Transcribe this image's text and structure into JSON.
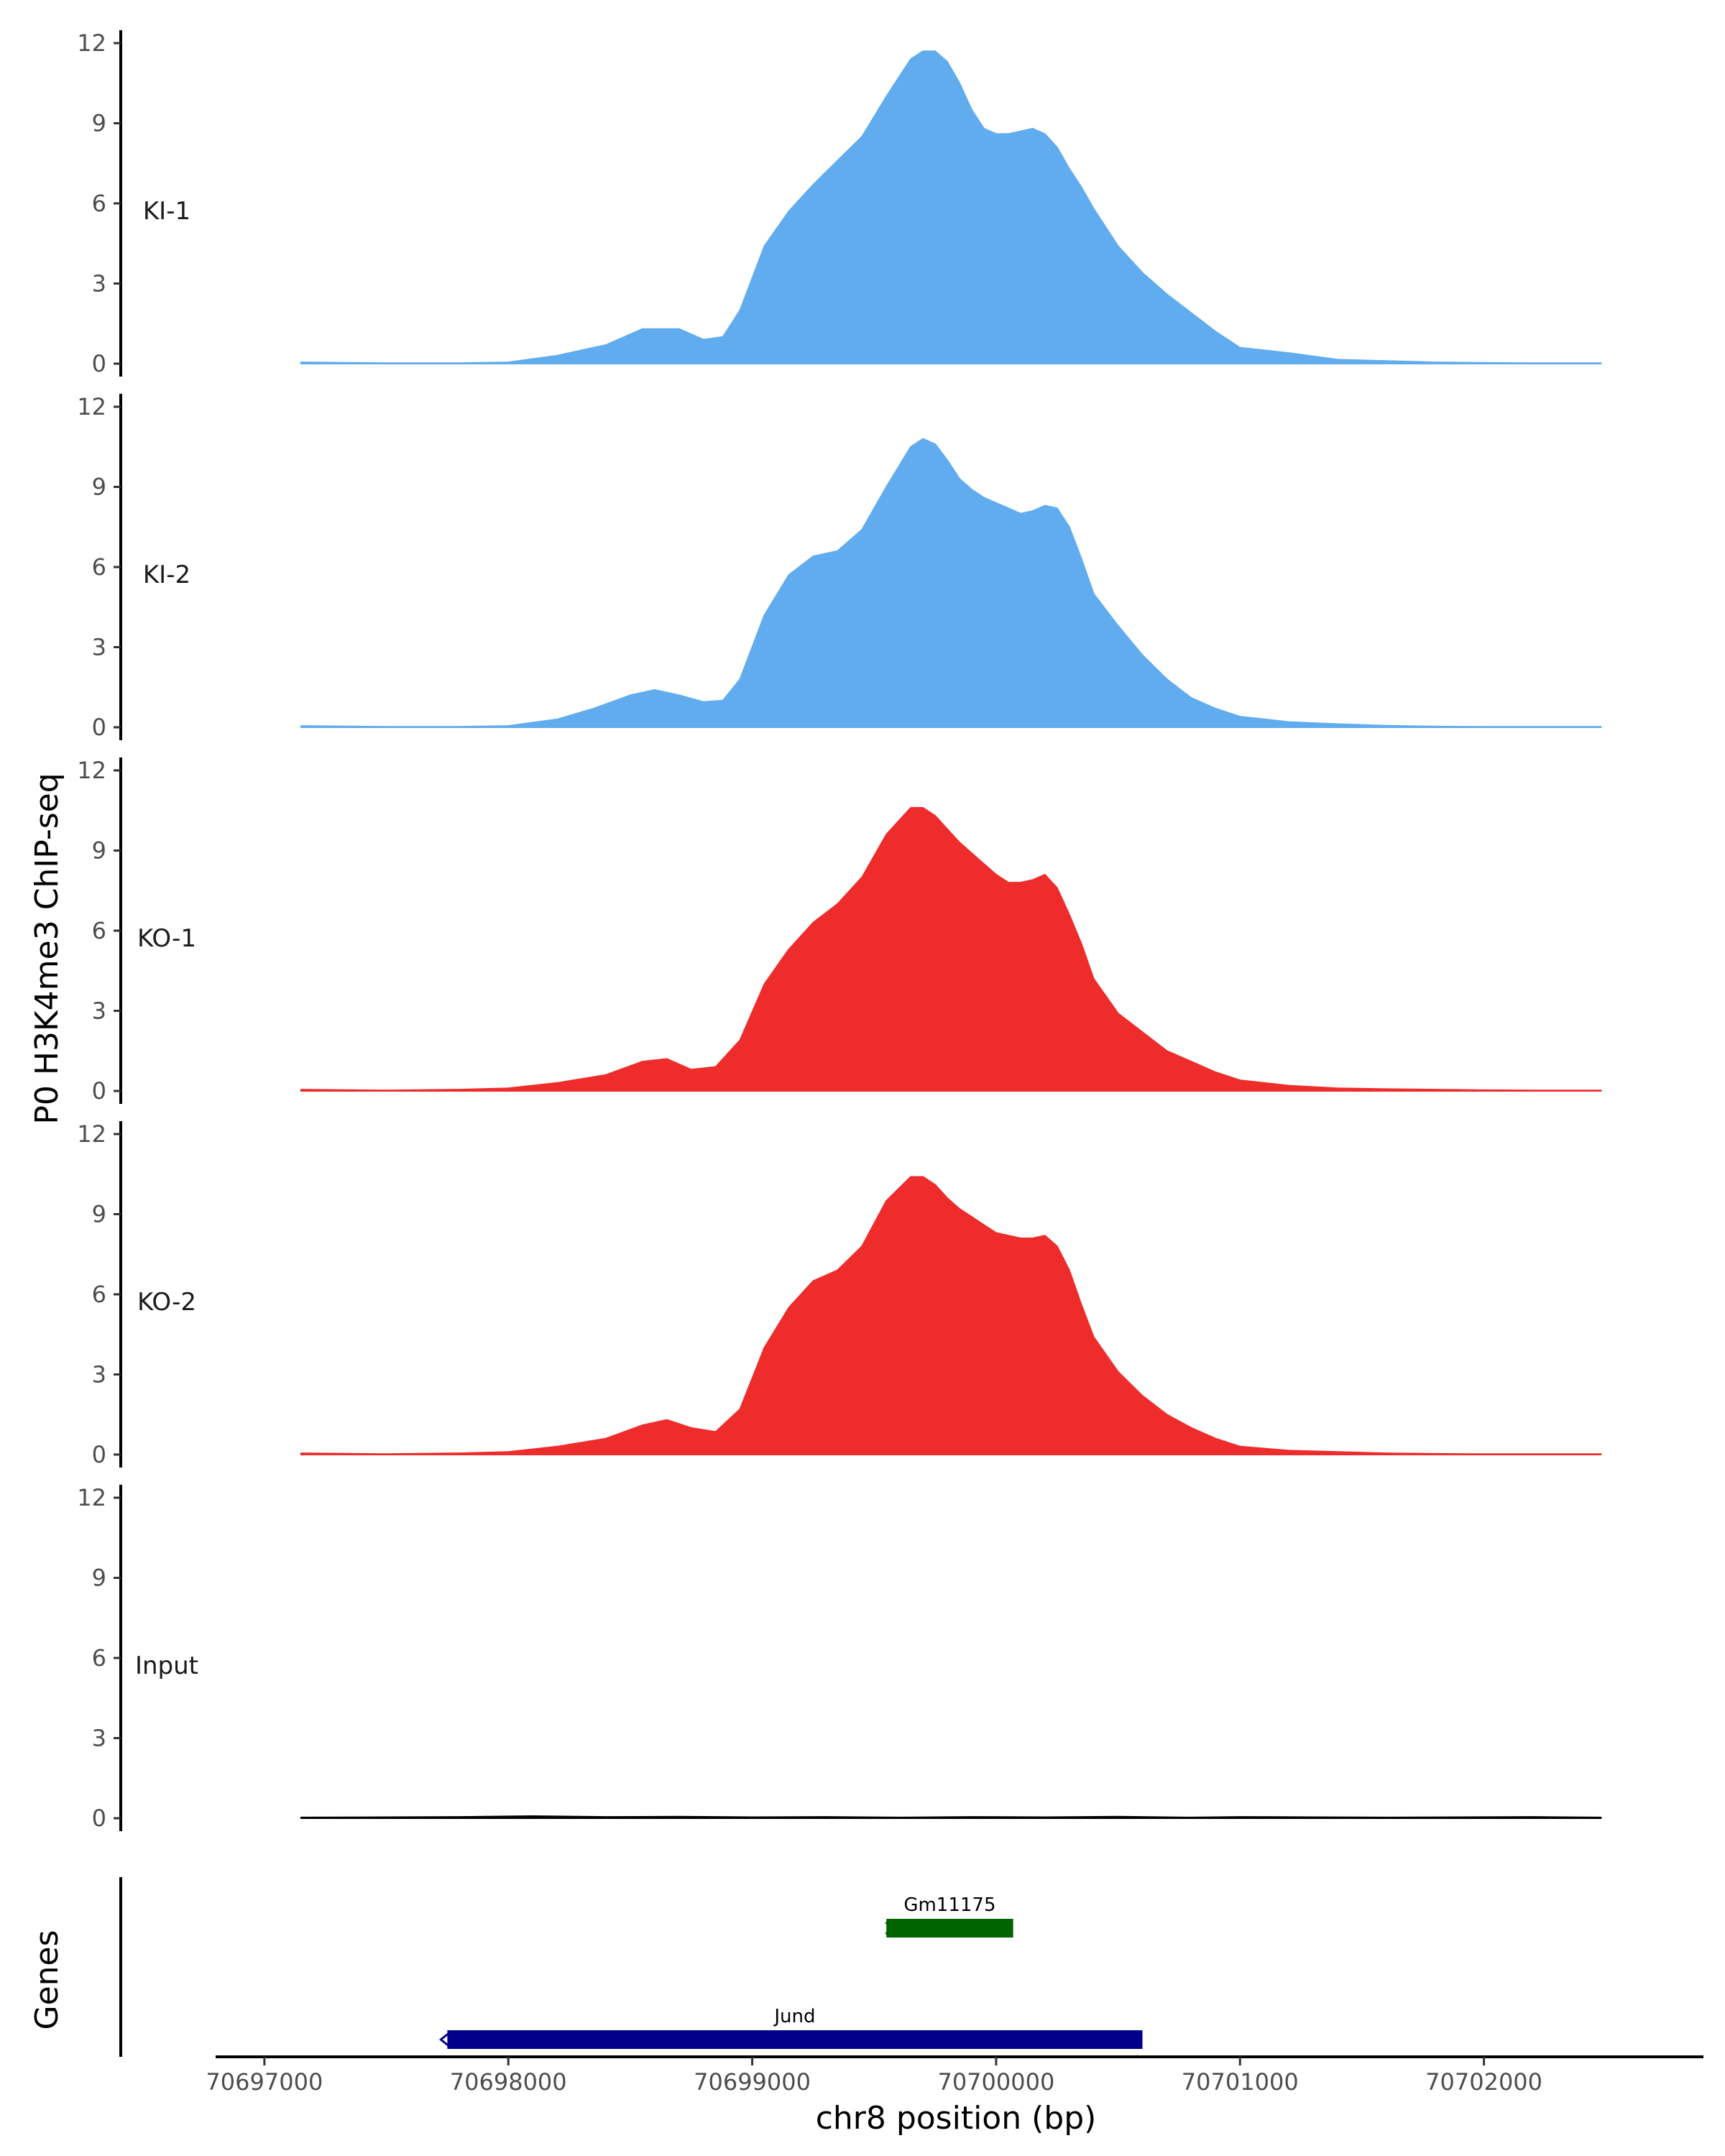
{
  "chart_data": {
    "type": "area",
    "y_axis_title": "P0 H3K4me3 ChIP-seq",
    "x_axis_title": "chr8 position (bp)",
    "genes_axis_title": "Genes",
    "chromosome": "chr8",
    "xlim": [
      70696800,
      70702900
    ],
    "x_ticks": [
      70697000,
      70698000,
      70699000,
      70700000,
      70701000,
      70702000
    ],
    "x_tick_labels": [
      "70697000",
      "70698000",
      "70699000",
      "70700000",
      "70701000",
      "70702000"
    ],
    "ylim": [
      0,
      12
    ],
    "y_ticks": [
      0,
      3,
      6,
      9,
      12
    ],
    "y_tick_labels": [
      "0",
      "3",
      "6",
      "9",
      "12"
    ],
    "colors": {
      "KI": "#60acee",
      "KO": "#ee2c2c",
      "Input": "#000000",
      "gene_green": "#006400",
      "gene_blue": "#00008b",
      "axis": "#000000",
      "tick_text": "#4d4d4d"
    },
    "series": [
      {
        "name": "KI-1",
        "color": "#60acee",
        "x": [
          70697150,
          70697500,
          70697800,
          70698000,
          70698200,
          70698400,
          70698550,
          70698700,
          70698800,
          70698880,
          70698950,
          70699050,
          70699150,
          70699250,
          70699350,
          70699450,
          70699550,
          70699650,
          70699700,
          70699750,
          70699800,
          70699850,
          70699900,
          70699950,
          70700000,
          70700050,
          70700100,
          70700150,
          70700200,
          70700250,
          70700300,
          70700350,
          70700400,
          70700500,
          70700600,
          70700700,
          70700800,
          70700900,
          70701000,
          70701200,
          70701400,
          70701600,
          70701800,
          70702000,
          70702200,
          70702480
        ],
        "values": [
          0.05,
          0.02,
          0.02,
          0.05,
          0.3,
          0.7,
          1.3,
          1.3,
          0.9,
          1.0,
          2.0,
          4.4,
          5.7,
          6.7,
          7.6,
          8.5,
          10.0,
          11.4,
          11.7,
          11.7,
          11.3,
          10.5,
          9.5,
          8.8,
          8.6,
          8.6,
          8.7,
          8.8,
          8.6,
          8.1,
          7.3,
          6.6,
          5.8,
          4.4,
          3.4,
          2.6,
          1.9,
          1.2,
          0.6,
          0.4,
          0.15,
          0.1,
          0.05,
          0.03,
          0.02,
          0.02
        ]
      },
      {
        "name": "KI-2",
        "color": "#60acee",
        "x": [
          70697150,
          70697500,
          70697800,
          70698000,
          70698200,
          70698350,
          70698500,
          70698600,
          70698700,
          70698800,
          70698880,
          70698950,
          70699050,
          70699150,
          70699250,
          70699350,
          70699450,
          70699550,
          70699650,
          70699700,
          70699750,
          70699800,
          70699850,
          70699900,
          70699950,
          70700000,
          70700050,
          70700100,
          70700150,
          70700200,
          70700250,
          70700300,
          70700350,
          70700400,
          70700500,
          70700600,
          70700700,
          70700800,
          70700900,
          70701000,
          70701200,
          70701400,
          70701600,
          70701800,
          70702000,
          70702200,
          70702480
        ],
        "values": [
          0.05,
          0.02,
          0.02,
          0.05,
          0.3,
          0.7,
          1.2,
          1.4,
          1.2,
          0.95,
          1.0,
          1.8,
          4.2,
          5.7,
          6.4,
          6.6,
          7.4,
          9.0,
          10.5,
          10.8,
          10.6,
          10.0,
          9.3,
          8.9,
          8.6,
          8.4,
          8.2,
          8.0,
          8.1,
          8.3,
          8.2,
          7.5,
          6.3,
          5.0,
          3.8,
          2.7,
          1.8,
          1.1,
          0.7,
          0.4,
          0.2,
          0.12,
          0.06,
          0.03,
          0.02,
          0.02,
          0.02
        ]
      },
      {
        "name": "KO-1",
        "color": "#ee2c2c",
        "x": [
          70697150,
          70697500,
          70697800,
          70698000,
          70698200,
          70698400,
          70698550,
          70698650,
          70698750,
          70698850,
          70698950,
          70699050,
          70699150,
          70699250,
          70699350,
          70699450,
          70699550,
          70699650,
          70699700,
          70699750,
          70699800,
          70699850,
          70699900,
          70699950,
          70700000,
          70700050,
          70700100,
          70700150,
          70700200,
          70700250,
          70700300,
          70700350,
          70700400,
          70700500,
          70700600,
          70700700,
          70700800,
          70700900,
          70701000,
          70701200,
          70701400,
          70701600,
          70701800,
          70702000,
          70702200,
          70702480
        ],
        "values": [
          0.05,
          0.02,
          0.05,
          0.1,
          0.3,
          0.6,
          1.1,
          1.2,
          0.8,
          0.9,
          1.9,
          4.0,
          5.3,
          6.3,
          7.0,
          8.0,
          9.6,
          10.6,
          10.6,
          10.3,
          9.8,
          9.3,
          8.9,
          8.5,
          8.1,
          7.8,
          7.8,
          7.9,
          8.1,
          7.6,
          6.6,
          5.5,
          4.2,
          2.9,
          2.2,
          1.5,
          1.1,
          0.7,
          0.4,
          0.2,
          0.1,
          0.07,
          0.05,
          0.03,
          0.02,
          0.02
        ]
      },
      {
        "name": "KO-2",
        "color": "#ee2c2c",
        "x": [
          70697150,
          70697500,
          70697800,
          70698000,
          70698200,
          70698400,
          70698550,
          70698650,
          70698750,
          70698850,
          70698950,
          70699050,
          70699150,
          70699250,
          70699350,
          70699450,
          70699550,
          70699650,
          70699700,
          70699750,
          70699800,
          70699850,
          70699900,
          70699950,
          70700000,
          70700050,
          70700100,
          70700150,
          70700200,
          70700250,
          70700300,
          70700350,
          70700400,
          70700500,
          70700600,
          70700700,
          70700800,
          70700900,
          70701000,
          70701200,
          70701400,
          70701600,
          70701800,
          70702000,
          70702200,
          70702480
        ],
        "values": [
          0.05,
          0.02,
          0.05,
          0.1,
          0.3,
          0.6,
          1.1,
          1.3,
          1.0,
          0.85,
          1.7,
          4.0,
          5.5,
          6.5,
          6.9,
          7.8,
          9.5,
          10.4,
          10.4,
          10.1,
          9.6,
          9.2,
          8.9,
          8.6,
          8.3,
          8.2,
          8.1,
          8.1,
          8.2,
          7.8,
          6.9,
          5.6,
          4.4,
          3.1,
          2.2,
          1.5,
          1.0,
          0.6,
          0.3,
          0.15,
          0.1,
          0.05,
          0.03,
          0.02,
          0.02,
          0.02
        ]
      },
      {
        "name": "Input",
        "color": "#000000",
        "x": [
          70697150,
          70697500,
          70697800,
          70698100,
          70698400,
          70698700,
          70699000,
          70699300,
          70699600,
          70699900,
          70700200,
          70700500,
          70700800,
          70701000,
          70701300,
          70701600,
          70701900,
          70702200,
          70702480
        ],
        "values": [
          0.03,
          0.04,
          0.05,
          0.08,
          0.05,
          0.06,
          0.04,
          0.05,
          0.03,
          0.05,
          0.04,
          0.06,
          0.03,
          0.05,
          0.04,
          0.03,
          0.04,
          0.05,
          0.03
        ]
      }
    ],
    "genes": [
      {
        "name": "Gm11175",
        "start": 70699550,
        "end": 70700070,
        "color": "#006400",
        "strand": "+"
      },
      {
        "name": "Jund",
        "start": 70697750,
        "end": 70700600,
        "color": "#00008b",
        "strand": "-"
      }
    ]
  }
}
